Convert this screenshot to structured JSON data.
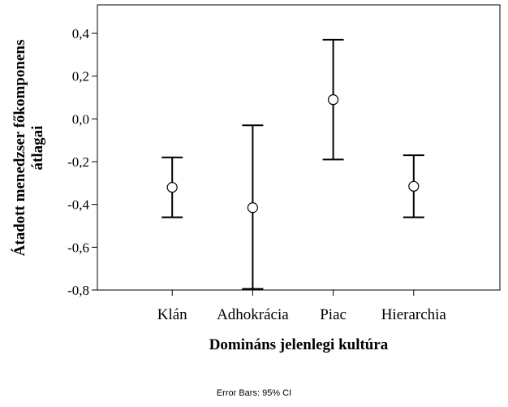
{
  "chart_data": {
    "type": "errorbar",
    "xlabel": "Domináns jelenlegi kultúra",
    "ylabel_lines": [
      "Átadott menedzser főkomponens",
      "átlagai"
    ],
    "ylim": [
      -0.8,
      0.533
    ],
    "yticks": [
      0.4,
      0.2,
      0.0,
      -0.2,
      -0.4,
      -0.6,
      -0.8
    ],
    "ytick_labels": [
      "0,4",
      "0,2",
      "0,0",
      "-0,2",
      "-0,4",
      "-0,6",
      "-0,8"
    ],
    "categories": [
      "Klán",
      "Adhokrácia",
      "Piac",
      "Hierarchia"
    ],
    "means": [
      -0.32,
      -0.415,
      0.09,
      -0.315
    ],
    "ci_lower": [
      -0.46,
      -0.795,
      -0.19,
      -0.46
    ],
    "ci_upper": [
      -0.18,
      -0.03,
      0.37,
      -0.17
    ],
    "grid": false,
    "footnote": "Error Bars: 95% CI"
  }
}
